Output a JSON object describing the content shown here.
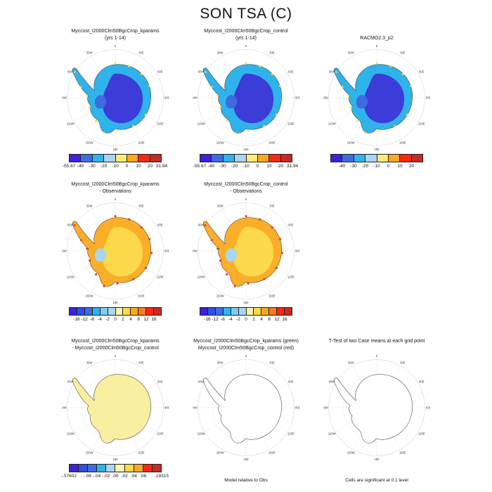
{
  "title": "SON TSA (C)",
  "panels": {
    "r1c1": {
      "title1": "Myccost_I2000Clm50BgcCrop_kparams",
      "title2": "(yrs 1-14)"
    },
    "r1c2": {
      "title1": "Myccost_I2000Clm50BgcCrop_control",
      "title2": "(yrs 1-14)"
    },
    "r1c3": {
      "title1": "",
      "title2": "RACMO2.3_p2"
    },
    "r2c1": {
      "title1": "Myccost_I2000Clm50BgcCrop_kparams",
      "title2": "- Observations"
    },
    "r2c2": {
      "title1": "Myccost_I2000Clm50BgcCrop_control",
      "title2": "- Observations"
    },
    "r3c1": {
      "title1": "Myccost_I2000Clm50BgcCrop_kparams",
      "title2": "- Myccost_I2000Clm50BgcCrop_control"
    },
    "r3c2": {
      "title1": "Myccost_I2000Clm50BgcCrop_kparams (green)",
      "title2": "Myccost_I2000Clm50BgcCrop_control (red)",
      "footer": "Model relative to Obs"
    },
    "r3c3": {
      "title1": "T-Test of two Case means at each grid point",
      "title2": "",
      "footer": "Cells are significant at 0.1 level"
    }
  },
  "colorbars": {
    "row1_model": {
      "colors": [
        "#3C23D8",
        "#3D6BE0",
        "#2FB3EB",
        "#A8D6F0",
        "#FBEC73",
        "#FCA81F",
        "#F42A12",
        "#C62B21"
      ],
      "labels": [
        "-55.67",
        "-40",
        "-30",
        "-20",
        "-10",
        "0",
        "10",
        "20",
        "31.94"
      ],
      "positions": [
        0,
        12.5,
        25,
        37.5,
        50,
        62.5,
        75,
        87.5,
        100
      ]
    },
    "row1_obs": {
      "colors": [
        "#3C23D8",
        "#3D6BE0",
        "#2FB3EB",
        "#A8D6F0",
        "#FBEC73",
        "#FCA81F",
        "#F42A12",
        "#C62B21"
      ],
      "labels": [
        "-40",
        "-30",
        "-20",
        "-10",
        "0",
        "10",
        "20"
      ],
      "positions": [
        12.5,
        25,
        37.5,
        50,
        62.5,
        75,
        87.5
      ]
    },
    "row2_diff": {
      "colors": [
        "#3C23D8",
        "#3050E0",
        "#3D6BE0",
        "#2FB3EB",
        "#7FCBEF",
        "#A8D6F0",
        "#FDF4A8",
        "#FBD94B",
        "#FCA81F",
        "#F87C1C",
        "#F42A12",
        "#C62B21"
      ],
      "labels": [
        "-16",
        "-12",
        "-8",
        "-4",
        "-2",
        "0",
        "2",
        "4",
        "8",
        "12",
        "16"
      ],
      "positions": [
        8.33,
        16.67,
        25,
        33.33,
        41.67,
        50,
        58.33,
        66.67,
        75,
        83.33,
        91.67
      ]
    },
    "row3_diff": {
      "colors": [
        "#3C23D8",
        "#3050E0",
        "#3D6BE0",
        "#2FB3EB",
        "#A8D6F0",
        "#FDF4A8",
        "#FBD94B",
        "#FCA81F",
        "#F42A12",
        "#C62B21"
      ],
      "labels": [
        "-.57602",
        "-.06",
        "-.04",
        "-.02",
        ".00",
        ".02",
        ".04",
        ".06",
        ".19315"
      ],
      "positions": [
        0,
        20,
        30,
        40,
        50,
        60,
        70,
        80,
        100
      ]
    }
  },
  "map": {
    "lon_labels": [
      {
        "a": 0,
        "t": "0"
      },
      {
        "a": 30,
        "t": "30E"
      },
      {
        "a": 60,
        "t": "60E"
      },
      {
        "a": 90,
        "t": "90E"
      },
      {
        "a": 120,
        "t": "120E"
      },
      {
        "a": 150,
        "t": "150E"
      },
      {
        "a": 180,
        "t": "180"
      },
      {
        "a": 210,
        "t": "150W"
      },
      {
        "a": 240,
        "t": "120W"
      },
      {
        "a": 270,
        "t": "90W"
      },
      {
        "a": 300,
        "t": "60W"
      },
      {
        "a": 330,
        "t": "30W"
      }
    ]
  },
  "chart_data": {
    "type": "heatmap",
    "figure_title": "SON TSA (C)",
    "projection": "antarctic polar stereographic",
    "panels": [
      {
        "row": 1,
        "col": 1,
        "title": "Myccost_I2000Clm50BgcCrop_kparams (yrs 1-14)",
        "style": "filled cold (blue) field",
        "colorbar_levels": [
          -55.67,
          -40,
          -30,
          -20,
          -10,
          0,
          10,
          20,
          31.94
        ]
      },
      {
        "row": 1,
        "col": 2,
        "title": "Myccost_I2000Clm50BgcCrop_control (yrs 1-14)",
        "style": "filled cold (blue) field",
        "colorbar_levels": [
          -55.67,
          -40,
          -30,
          -20,
          -10,
          0,
          10,
          20,
          31.94
        ]
      },
      {
        "row": 1,
        "col": 3,
        "title": "RACMO2.3_p2",
        "style": "filled cold (blue) field",
        "colorbar_levels": [
          -40,
          -30,
          -20,
          -10,
          0,
          10,
          20
        ]
      },
      {
        "row": 2,
        "col": 1,
        "title": "Myccost_I2000Clm50BgcCrop_kparams - Observations",
        "style": "filled warm (orange/yellow) difference field",
        "colorbar_levels": [
          -16,
          -12,
          -8,
          -4,
          -2,
          0,
          2,
          4,
          8,
          12,
          16
        ]
      },
      {
        "row": 2,
        "col": 2,
        "title": "Myccost_I2000Clm50BgcCrop_control - Observations",
        "style": "filled warm (orange/yellow) difference field",
        "colorbar_levels": [
          -16,
          -12,
          -8,
          -4,
          -2,
          0,
          2,
          4,
          8,
          12,
          16
        ]
      },
      {
        "row": 3,
        "col": 1,
        "title": "Myccost_I2000Clm50BgcCrop_kparams - Myccost_I2000Clm50BgcCrop_control",
        "style": "filled pale-yellow difference field",
        "colorbar_levels": [
          -0.57602,
          -0.06,
          -0.04,
          -0.02,
          0.0,
          0.02,
          0.04,
          0.06,
          0.19315
        ]
      },
      {
        "row": 3,
        "col": 2,
        "title": "Myccost_I2000Clm50BgcCrop_kparams (green) / Myccost_I2000Clm50BgcCrop_control (red)",
        "style": "contour outline only",
        "note": "Model relative to Obs"
      },
      {
        "row": 3,
        "col": 3,
        "title": "T-Test of two Case means at each grid point",
        "style": "contour outline only",
        "note": "Cells are significant at 0.1 level"
      }
    ]
  }
}
